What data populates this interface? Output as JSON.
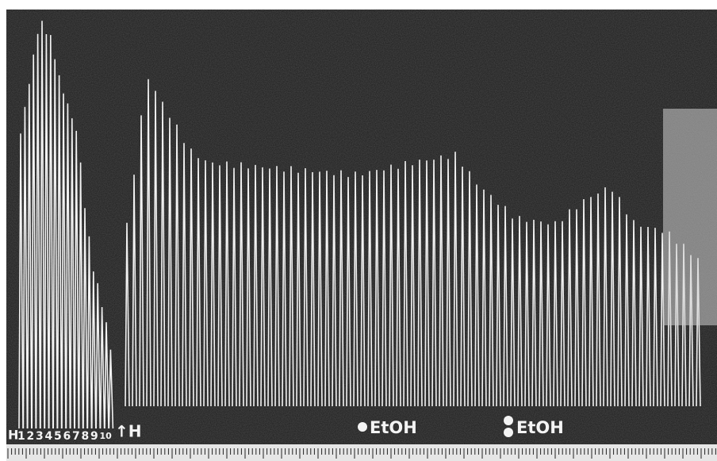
{
  "labels": {
    "start_marker": "H",
    "doses": [
      "1",
      "2",
      "3",
      "4",
      "5",
      "6",
      "7",
      "8",
      "9",
      "10"
    ],
    "wash": "↑H",
    "ethanol_first": "EtOH",
    "ethanol_second": "EtOH"
  }
}
